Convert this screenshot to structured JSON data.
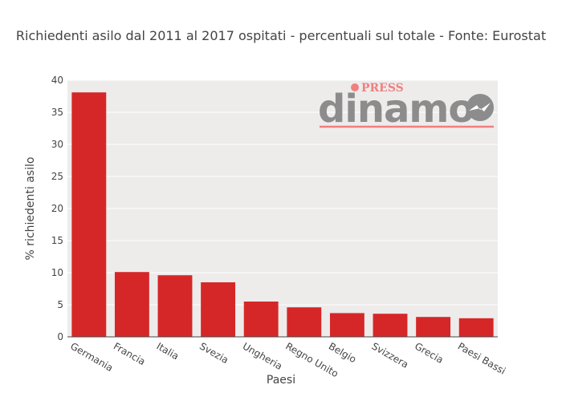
{
  "chart_data": {
    "type": "bar",
    "title": "Richiedenti asilo dal 2011 al 2017 ospitati - percentuali sul totale - Fonte: Eurostat",
    "xlabel": "Paesi",
    "ylabel": "% richiedenti asilo",
    "categories": [
      "Germania",
      "Francia",
      "Italia",
      "Svezia",
      "Ungheria",
      "Regno Unito",
      "Belgio",
      "Svizzera",
      "Grecia",
      "Paesi Bassi"
    ],
    "values": [
      38.1,
      10.1,
      9.6,
      8.5,
      5.5,
      4.6,
      3.7,
      3.6,
      3.1,
      2.9
    ],
    "ylim": [
      0,
      40
    ],
    "yticks": [
      0,
      5,
      10,
      15,
      20,
      25,
      30,
      35,
      40
    ],
    "grid": true,
    "bar_color": "#d62728",
    "plot_background": "#eeebeb"
  },
  "logo": {
    "name": "dinamo",
    "press": "PRESS",
    "colors": {
      "text": "#8c8c8c",
      "accent": "#f08080"
    }
  }
}
